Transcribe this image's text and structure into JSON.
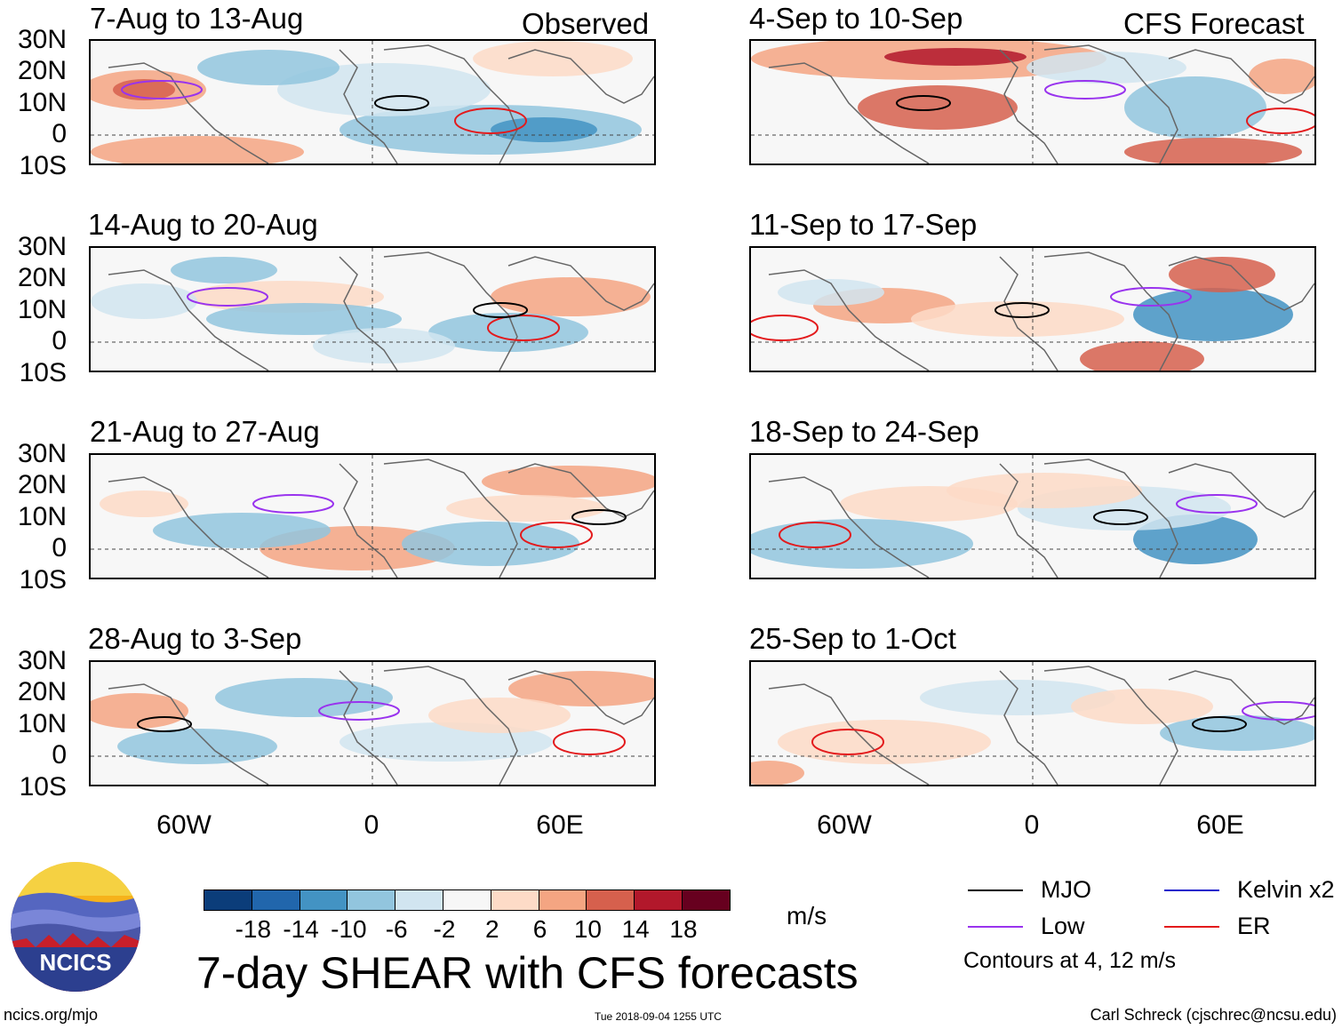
{
  "observed_label": "Observed",
  "forecast_label": "CFS Forecast",
  "lat_labels": [
    "30N",
    "20N",
    "10N",
    "0",
    "10S"
  ],
  "lon_labels": [
    "60W",
    "0",
    "60E"
  ],
  "panels_left": [
    {
      "title": "7-Aug to 13-Aug"
    },
    {
      "title": "14-Aug to 20-Aug"
    },
    {
      "title": "21-Aug to 27-Aug"
    },
    {
      "title": "28-Aug to 3-Sep"
    }
  ],
  "panels_right": [
    {
      "title": "4-Sep to 10-Sep"
    },
    {
      "title": "11-Sep to 17-Sep"
    },
    {
      "title": "18-Sep to 24-Sep"
    },
    {
      "title": "25-Sep to 1-Oct"
    }
  ],
  "colorbar": {
    "colors": [
      "#0b3d7a",
      "#2166ac",
      "#4393c3",
      "#92c5de",
      "#d1e5f0",
      "#f7f7f7",
      "#fddbc7",
      "#f4a582",
      "#d6604d",
      "#b2182b",
      "#67001f"
    ],
    "ticks": [
      "-18",
      "-14",
      "-10",
      "-6",
      "-2",
      "2",
      "6",
      "10",
      "14",
      "18"
    ],
    "unit": "m/s"
  },
  "title": "7-day SHEAR with CFS forecasts",
  "legend": {
    "items": [
      {
        "label": "MJO",
        "color": "#000000"
      },
      {
        "label": "Kelvin x2",
        "color": "#1a1acc"
      },
      {
        "label": "Low",
        "color": "#9933ee"
      },
      {
        "label": "ER",
        "color": "#e31a1c"
      }
    ],
    "note": "Contours at 4, 12 m/s"
  },
  "logo_text": "NCICS",
  "footer": {
    "left": "ncics.org/mjo",
    "center": "Tue 2018-09-04 1255 UTC",
    "right": "Carl Schreck (cjschrec@ncsu.edu)"
  }
}
